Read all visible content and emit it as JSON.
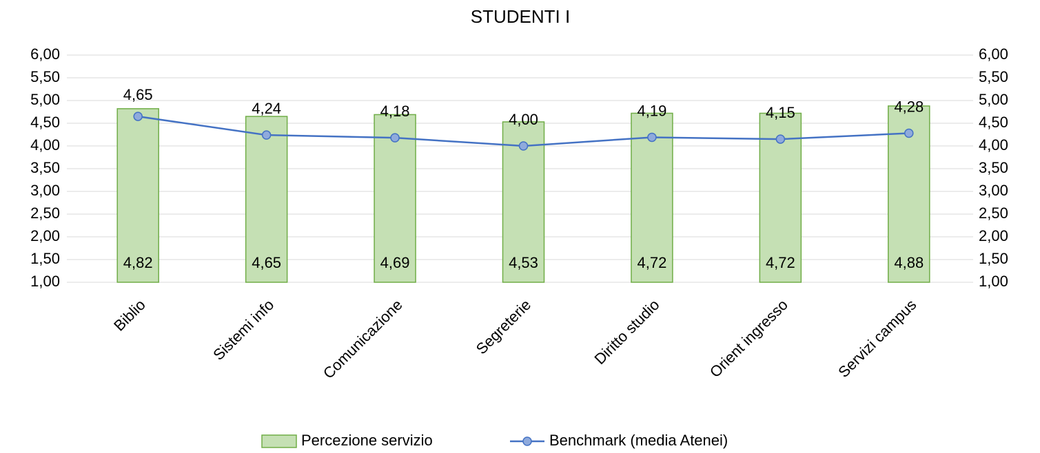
{
  "chart_data": {
    "type": "bar-line",
    "title": "STUDENTI I",
    "categories": [
      "Biblio",
      "Sistemi info",
      "Comunicazione",
      "Segreterie",
      "Diritto studio",
      "Orient ingresso",
      "Servizi campus"
    ],
    "series": [
      {
        "name": "Percezione servizio",
        "type": "bar",
        "color": "#c5e0b4",
        "edgecolor": "#70ad47",
        "values": [
          4.82,
          4.65,
          4.69,
          4.53,
          4.72,
          4.72,
          4.88
        ],
        "value_labels": [
          "4,82",
          "4,65",
          "4,69",
          "4,53",
          "4,72",
          "4,72",
          "4,88"
        ]
      },
      {
        "name": "Benchmark (media Atenei)",
        "type": "line",
        "axis": "y2",
        "color": "#4472c4",
        "marker_color": "#8faadc",
        "values": [
          4.65,
          4.24,
          4.18,
          4.0,
          4.19,
          4.15,
          4.28
        ],
        "value_labels": [
          "4,65",
          "4,24",
          "4,18",
          "4,00",
          "4,19",
          "4,15",
          "4,28"
        ]
      }
    ],
    "ylim": [
      1,
      6
    ],
    "yticks": [
      {
        "value": 1,
        "label": "1,00"
      },
      {
        "value": 1.5,
        "label": "1,50"
      },
      {
        "value": 2,
        "label": "2,00"
      },
      {
        "value": 2.5,
        "label": "2,50"
      },
      {
        "value": 3,
        "label": "3,00"
      },
      {
        "value": 3.5,
        "label": "3,50"
      },
      {
        "value": 4,
        "label": "4,00"
      },
      {
        "value": 4.5,
        "label": "4,50"
      },
      {
        "value": 5,
        "label": "5,00"
      },
      {
        "value": 5.5,
        "label": "5,50"
      },
      {
        "value": 6,
        "label": "6,00"
      }
    ],
    "y2lim": [
      1,
      6
    ],
    "y2ticks": [
      {
        "value": 1,
        "label": "1,00"
      },
      {
        "value": 1.5,
        "label": "1,50"
      },
      {
        "value": 2,
        "label": "2,00"
      },
      {
        "value": 2.5,
        "label": "2,50"
      },
      {
        "value": 3,
        "label": "3,00"
      },
      {
        "value": 3.5,
        "label": "3,50"
      },
      {
        "value": 4,
        "label": "4,00"
      },
      {
        "value": 4.5,
        "label": "4,50"
      },
      {
        "value": 5,
        "label": "5,00"
      },
      {
        "value": 5.5,
        "label": "5,50"
      },
      {
        "value": 6,
        "label": "6,00"
      }
    ],
    "grid": true,
    "legend": "bottom"
  }
}
